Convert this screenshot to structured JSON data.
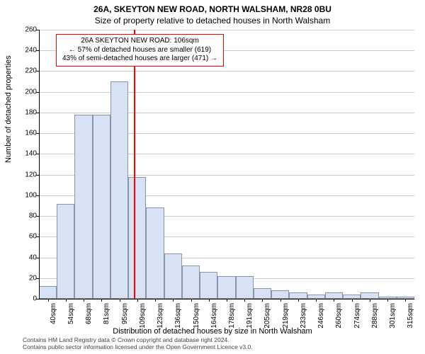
{
  "title_main": "26A, SKEYTON NEW ROAD, NORTH WALSHAM, NR28 0BU",
  "title_sub": "Size of property relative to detached houses in North Walsham",
  "ylabel": "Number of detached properties",
  "xlabel": "Distribution of detached houses by size in North Walsham",
  "footer_line1": "Contains HM Land Registry data © Crown copyright and database right 2024.",
  "footer_line2": "Contains public sector information licensed under the Open Government Licence v3.0.",
  "chart": {
    "type": "histogram",
    "background_color": "#ffffff",
    "grid_color": "#cccccc",
    "axis_color": "#000000",
    "bar_fill": "#d7e2f4",
    "bar_border": "#8894aa",
    "marker_color": "#ff0000",
    "marker_x_value": 106,
    "ylim": [
      0,
      260
    ],
    "ytick_step": 20,
    "yticks": [
      0,
      20,
      40,
      60,
      80,
      100,
      120,
      140,
      160,
      180,
      200,
      220,
      240,
      260
    ],
    "x_categories": [
      "40sqm",
      "54sqm",
      "68sqm",
      "81sqm",
      "95sqm",
      "109sqm",
      "123sqm",
      "136sqm",
      "150sqm",
      "164sqm",
      "178sqm",
      "191sqm",
      "205sqm",
      "219sqm",
      "233sqm",
      "246sqm",
      "260sqm",
      "274sqm",
      "288sqm",
      "301sqm",
      "315sqm"
    ],
    "x_numeric": [
      40,
      54,
      68,
      81,
      95,
      109,
      123,
      136,
      150,
      164,
      178,
      191,
      205,
      219,
      233,
      246,
      260,
      274,
      288,
      301,
      315
    ],
    "values": [
      12,
      92,
      178,
      178,
      210,
      118,
      88,
      44,
      32,
      26,
      22,
      22,
      10,
      8,
      6,
      4,
      6,
      4,
      6,
      2,
      2
    ],
    "bar_width_ratio": 1.0,
    "title_fontsize": 12,
    "subtitle_fontsize": 12,
    "label_fontsize": 11,
    "tick_fontsize": 10,
    "annotation_fontsize": 10,
    "annotation_border_color": "#ff0000"
  },
  "annotation": {
    "line1": "26A SKEYTON NEW ROAD: 106sqm",
    "line2": "← 57% of detached houses are smaller (619)",
    "line3": "43% of semi-detached houses are larger (471) →"
  }
}
